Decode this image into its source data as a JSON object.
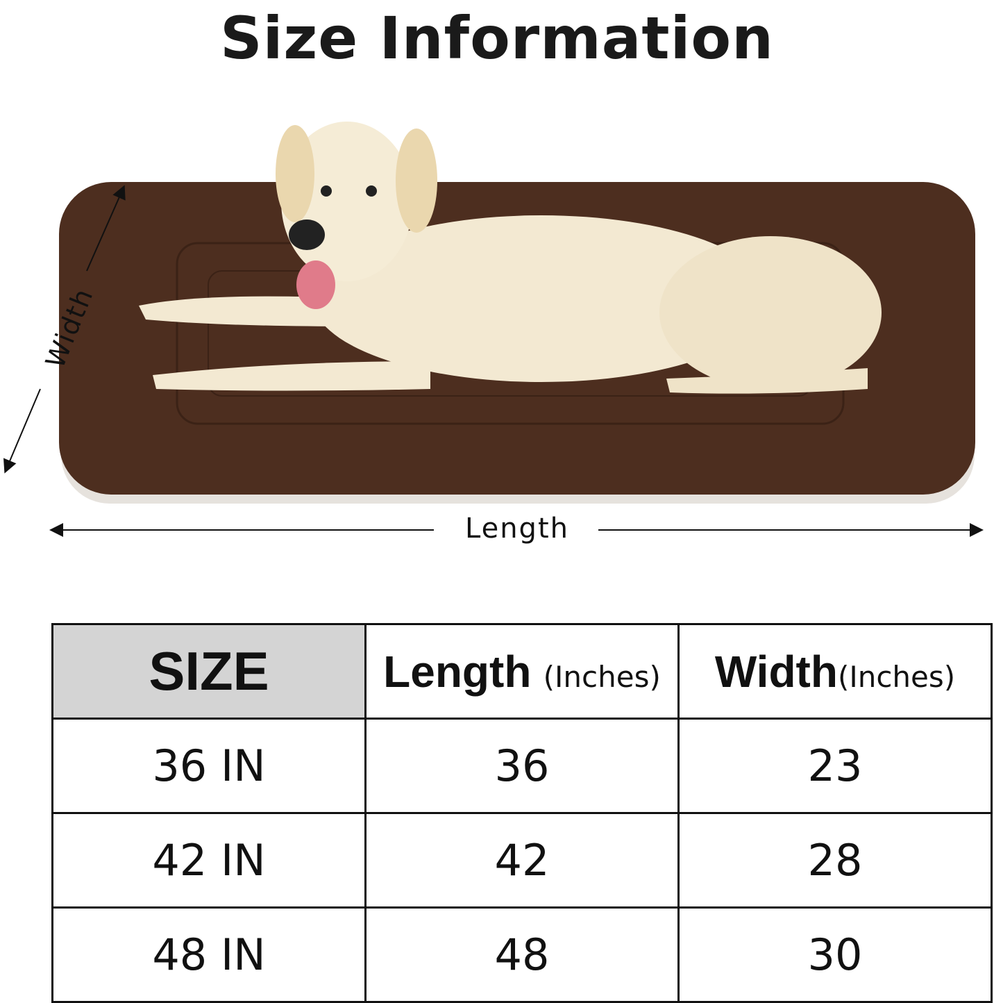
{
  "title": "Size Information",
  "diagram": {
    "width_label": "Width",
    "length_label": "Length",
    "mat_color": "#4a2c1c"
  },
  "table": {
    "headers": {
      "size": "SIZE",
      "length": "Length",
      "length_unit": "(Inches)",
      "width": "Width",
      "width_unit": "(Inches)"
    },
    "header_bg": "#d4d4d4",
    "rows": [
      {
        "size": "36 IN",
        "length": "36",
        "width": "23"
      },
      {
        "size": "42 IN",
        "length": "42",
        "width": "28"
      },
      {
        "size": "48 IN",
        "length": "48",
        "width": "30"
      }
    ]
  }
}
